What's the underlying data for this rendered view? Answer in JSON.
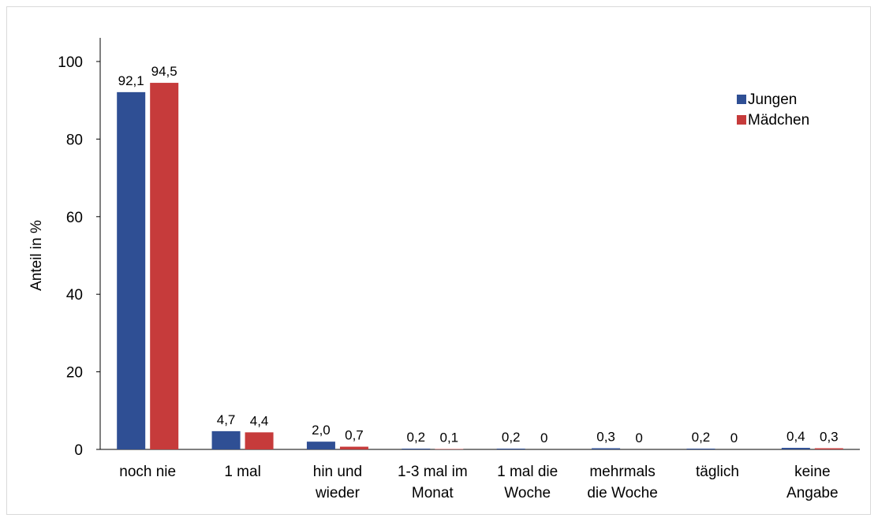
{
  "chart_data": {
    "type": "bar",
    "title": "",
    "xlabel": "",
    "ylabel": "Anteil in %",
    "ylim": [
      0,
      100
    ],
    "yticks": [
      0,
      20,
      40,
      60,
      80,
      100
    ],
    "grid": false,
    "legend_position": "top-right",
    "categories": [
      [
        "noch nie"
      ],
      [
        "1 mal"
      ],
      [
        "hin und",
        "wieder"
      ],
      [
        "1-3 mal im",
        "Monat"
      ],
      [
        "1 mal die",
        "Woche"
      ],
      [
        "mehrmals",
        "die Woche"
      ],
      [
        "täglich"
      ],
      [
        "keine",
        "Angabe"
      ]
    ],
    "series": [
      {
        "name": "Jungen",
        "color": "#2f4f94",
        "values": [
          92.1,
          4.7,
          2.0,
          0.2,
          0.2,
          0.3,
          0.2,
          0.4
        ],
        "labels": [
          "92,1",
          "4,7",
          "2,0",
          "0,2",
          "0,2",
          "0,3",
          "0,2",
          "0,4"
        ]
      },
      {
        "name": "Mädchen",
        "color": "#c63b3b",
        "values": [
          94.5,
          4.4,
          0.7,
          0.1,
          0,
          0,
          0,
          0.3
        ],
        "labels": [
          "94,5",
          "4,4",
          "0,7",
          "0,1",
          "0",
          "0",
          "0",
          "0,3"
        ]
      }
    ]
  }
}
